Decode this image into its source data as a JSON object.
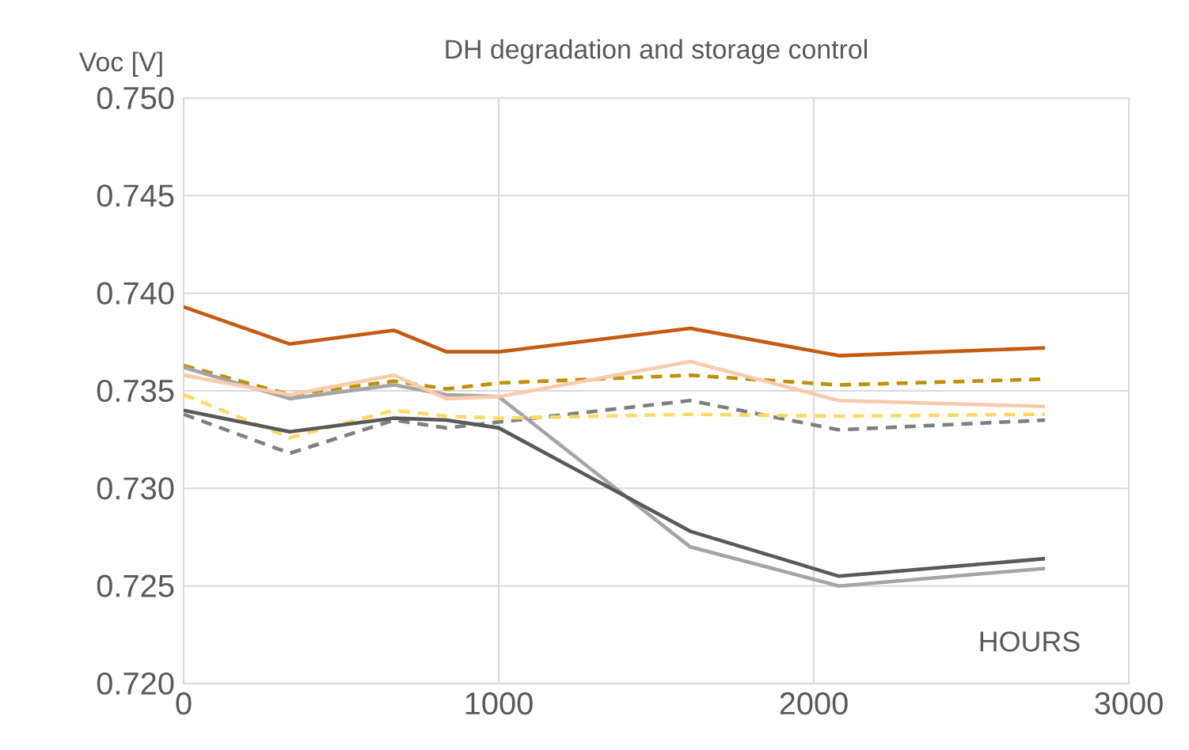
{
  "chart_data": {
    "type": "line",
    "title": "DH degradation and storage control",
    "xlabel": "HOURS",
    "ylabel": "Voc [V]",
    "xlim": [
      0,
      3000
    ],
    "xticks": [
      0,
      1000,
      2000,
      3000
    ],
    "ylim": [
      0.72,
      0.75
    ],
    "yticks": [
      {
        "value": 0.72,
        "label": "0.720"
      },
      {
        "value": 0.725,
        "label": "0.725"
      },
      {
        "value": 0.73,
        "label": "0.730"
      },
      {
        "value": 0.735,
        "label": "0.735"
      },
      {
        "value": 0.74,
        "label": "0.740"
      },
      {
        "value": 0.745,
        "label": "0.745"
      },
      {
        "value": 0.75,
        "label": "0.750"
      }
    ],
    "grid": true,
    "marker": "none",
    "x": [
      0,
      337,
      668,
      834,
      1000,
      1608,
      2080,
      2734
    ],
    "series": [
      {
        "color": "#c55a11",
        "line_style": "solid",
        "values": [
          0.7393,
          0.7374,
          0.7381,
          0.737,
          0.737,
          0.7382,
          0.7368,
          0.7372
        ]
      },
      {
        "color": "#bf9000",
        "line_style": "dashed",
        "values": [
          0.7363,
          0.7348,
          0.7355,
          0.7351,
          0.7354,
          0.7358,
          0.7353,
          0.7356
        ]
      },
      {
        "color": "#a5a5a5",
        "line_style": "solid",
        "values": [
          0.7362,
          0.7346,
          0.7353,
          0.7348,
          0.7347,
          0.727,
          0.725,
          0.7259
        ]
      },
      {
        "color": "#7f7f7f",
        "line_style": "dashed",
        "values": [
          0.7338,
          0.7318,
          0.7335,
          0.7331,
          0.7334,
          0.7345,
          0.733,
          0.7335
        ]
      },
      {
        "color": "#ffd966",
        "line_style": "dashed",
        "values": [
          0.7348,
          0.7326,
          0.734,
          0.7337,
          0.7336,
          0.7338,
          0.7337,
          0.7338
        ]
      },
      {
        "color": "#595959",
        "line_style": "solid",
        "values": [
          0.734,
          0.7329,
          0.7336,
          0.7335,
          0.7331,
          0.7278,
          0.7255,
          0.7264
        ]
      },
      {
        "color": "#f8cbad",
        "line_style": "solid",
        "values": [
          0.7358,
          0.7348,
          0.7358,
          0.7346,
          0.7347,
          0.7365,
          0.7345,
          0.7342
        ]
      }
    ]
  }
}
